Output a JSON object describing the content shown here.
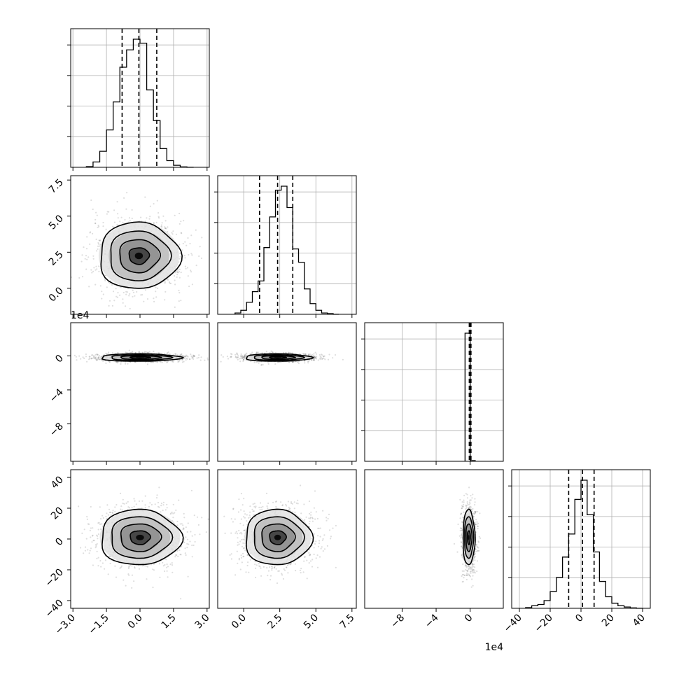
{
  "chart_data": {
    "type": "corner",
    "parameters": [
      {
        "range": [
          -3.1,
          3.1
        ],
        "ticks": [
          -3.0,
          -1.5,
          0.0,
          1.5,
          3.0
        ],
        "tick_labels": [
          "−3.0",
          "−1.5",
          "0.0",
          "1.5",
          "3.0"
        ],
        "multiplier": ""
      },
      {
        "range": [
          -1.8,
          7.8
        ],
        "ticks": [
          0.0,
          2.5,
          5.0,
          7.5
        ],
        "tick_labels": [
          "0.0",
          "2.5",
          "5.0",
          "7.5"
        ],
        "multiplier": ""
      },
      {
        "range": [
          -12.4,
          3.9
        ],
        "ticks": [
          -8,
          -4,
          0
        ],
        "tick_labels": [
          "−8",
          "−4",
          "0"
        ],
        "multiplier": "1e4"
      },
      {
        "range": [
          -45,
          45
        ],
        "ticks": [
          -40,
          -20,
          0,
          20,
          40
        ],
        "tick_labels": [
          "−40",
          "−20",
          "0",
          "20",
          "40"
        ],
        "multiplier": ""
      }
    ],
    "histograms": [
      {
        "quantiles": [
          -0.8,
          -0.05,
          0.75
        ],
        "bins": [
          -2.4,
          -2.1,
          -1.8,
          -1.5,
          -1.2,
          -0.9,
          -0.6,
          -0.3,
          0.0,
          0.3,
          0.6,
          0.9,
          1.2,
          1.5,
          1.8,
          2.1,
          2.4
        ],
        "counts": [
          0.5,
          4,
          12,
          28,
          49,
          75,
          88,
          96,
          93,
          58,
          35,
          14,
          5,
          1.5,
          0.3,
          0
        ]
      },
      {
        "quantiles": [
          1.1,
          2.35,
          3.4
        ],
        "bins": [
          -0.6,
          -0.2,
          0.2,
          0.6,
          1.0,
          1.4,
          1.8,
          2.2,
          2.6,
          3.0,
          3.4,
          3.8,
          4.2,
          4.6,
          5.0,
          5.4,
          5.8,
          6.2,
          6.6
        ],
        "counts": [
          1,
          3,
          9,
          17,
          25,
          50,
          73,
          93,
          96,
          80,
          49,
          39,
          19,
          8,
          3,
          1,
          0.5,
          0
        ]
      },
      {
        "quantiles": [
          -0.1,
          0.0,
          0.1
        ],
        "bins": [
          -0.6,
          0.0,
          0.6
        ],
        "counts": [
          100,
          0.5
        ]
      },
      {
        "quantiles": [
          -8,
          1,
          8.5
        ],
        "bins": [
          -36,
          -32,
          -28,
          -24,
          -20,
          -16,
          -12,
          -8,
          -4,
          0,
          4,
          8,
          12,
          16,
          20,
          24,
          28,
          32,
          36,
          40
        ],
        "counts": [
          0.5,
          2,
          3,
          6,
          13,
          24,
          40,
          58,
          85,
          100,
          73,
          44,
          21,
          9,
          4,
          2,
          1,
          0.3,
          0
        ]
      }
    ],
    "pairs": [
      {
        "row": 1,
        "col": 0,
        "mean": [
          -0.05,
          2.25
        ],
        "sigma": [
          0.9,
          1.15
        ],
        "width_scale": 1
      },
      {
        "row": 2,
        "col": 0,
        "mean": [
          0.0,
          -0.2
        ],
        "sigma": [
          0.9,
          0.22
        ],
        "width_scale": 1
      },
      {
        "row": 2,
        "col": 1,
        "mean": [
          2.35,
          -0.2
        ],
        "sigma": [
          1.15,
          0.22
        ],
        "width_scale": 1
      },
      {
        "row": 3,
        "col": 0,
        "mean": [
          0.0,
          1.0
        ],
        "sigma": [
          0.9,
          9.0
        ],
        "width_scale": 1
      },
      {
        "row": 3,
        "col": 1,
        "mean": [
          2.35,
          1.0
        ],
        "sigma": [
          1.15,
          9.0
        ],
        "width_scale": 1
      },
      {
        "row": 3,
        "col": 2,
        "mean": [
          -0.15,
          1.0
        ],
        "sigma": [
          0.35,
          9.0
        ],
        "width_scale": 1
      }
    ],
    "contour_levels_sigma": [
      0.5,
      1.0,
      1.5,
      2.0
    ],
    "grid": true,
    "title": "",
    "xlabel": "",
    "ylabel": ""
  }
}
